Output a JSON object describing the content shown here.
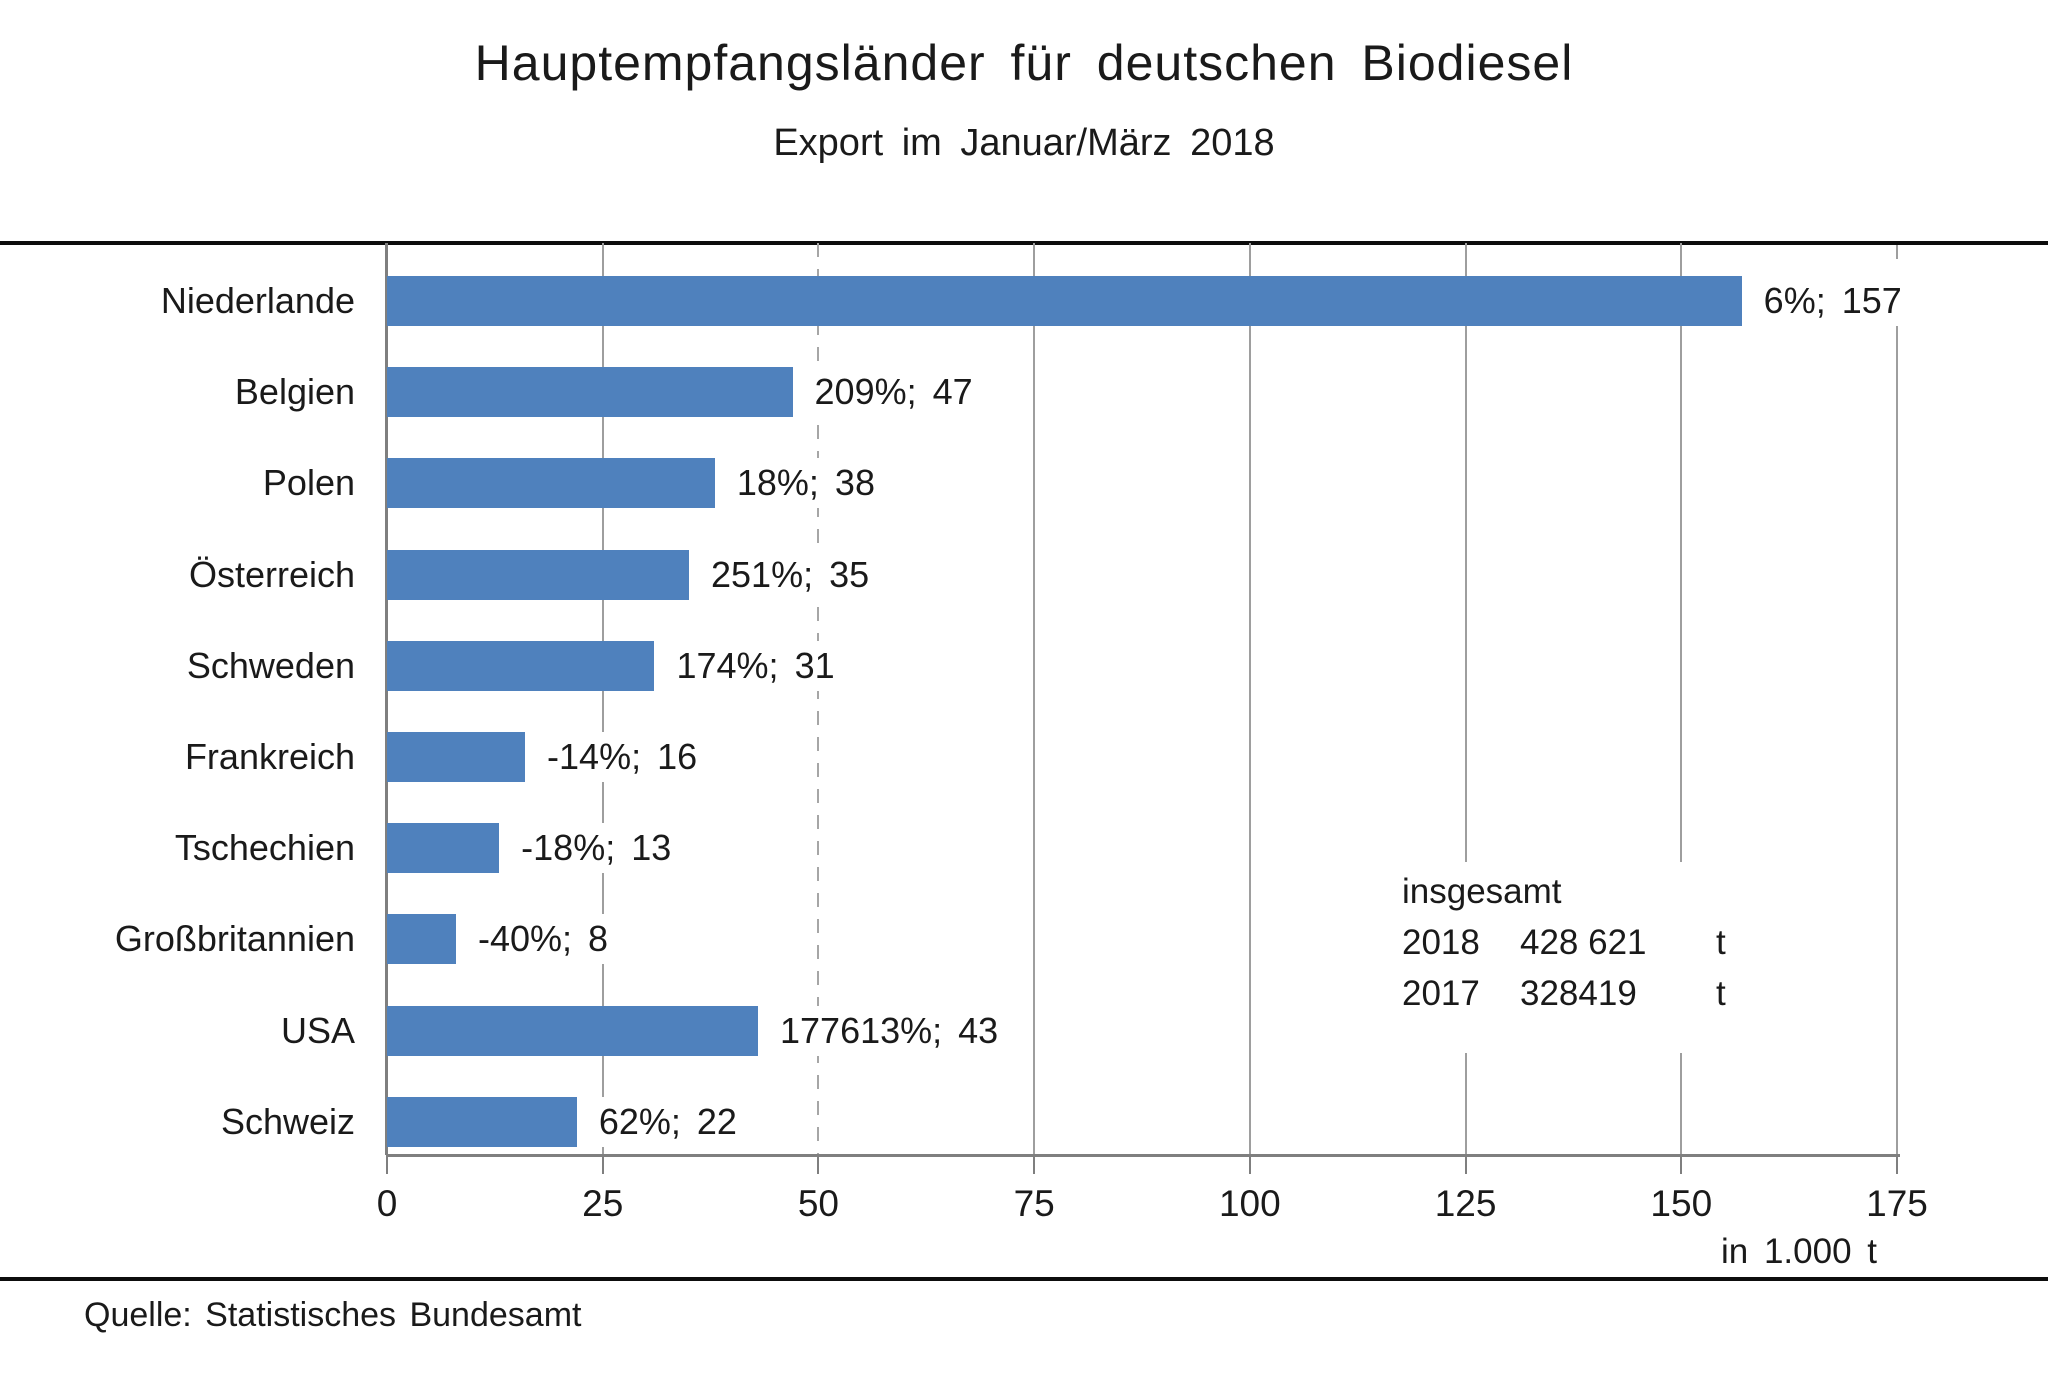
{
  "title": "Hauptempfangsländer für deutschen Biodiesel",
  "subtitle": "Export im Januar/März 2018",
  "source": "Quelle: Statistisches Bundesamt",
  "colors": {
    "bar": "#4f81bd",
    "gridline": "#9e9e9e",
    "axis": "#7f7f7f",
    "divider": "#0d0d0d",
    "text": "#1a1a1a"
  },
  "chart_data": {
    "type": "bar",
    "orientation": "horizontal",
    "title": "Hauptempfangsländer für deutschen Biodiesel",
    "subtitle": "Export im Januar/März 2018",
    "categories": [
      "Niederlande",
      "Belgien",
      "Polen",
      "Österreich",
      "Schweden",
      "Frankreich",
      "Tschechien",
      "Großbritannien",
      "USA",
      "Schweiz"
    ],
    "values": [
      157,
      47,
      38,
      35,
      31,
      16,
      13,
      8,
      43,
      22
    ],
    "change_pct": [
      6,
      209,
      18,
      251,
      174,
      -14,
      -18,
      -40,
      177613,
      62
    ],
    "data_labels": [
      "6%; 157",
      "209%; 47",
      "18%; 38",
      "251%; 35",
      "174%; 31",
      "-14%; 16",
      "-18%; 13",
      "-40%; 8",
      "177613%; 43",
      "62%; 22"
    ],
    "xlabel": "in 1.000 t",
    "ylabel": "",
    "xlim": [
      0,
      175
    ],
    "x_ticks": [
      0,
      25,
      50,
      75,
      100,
      125,
      150,
      175
    ],
    "dashed_gridlines": [
      50
    ],
    "grid": "vertical",
    "legend": "none",
    "bar_color": "#4f81bd",
    "annotation": {
      "heading": "insgesamt",
      "rows": [
        {
          "year": "2018",
          "amount": "428 621",
          "unit": "t"
        },
        {
          "year": "2017",
          "amount": "328419",
          "unit": "t"
        }
      ]
    }
  }
}
